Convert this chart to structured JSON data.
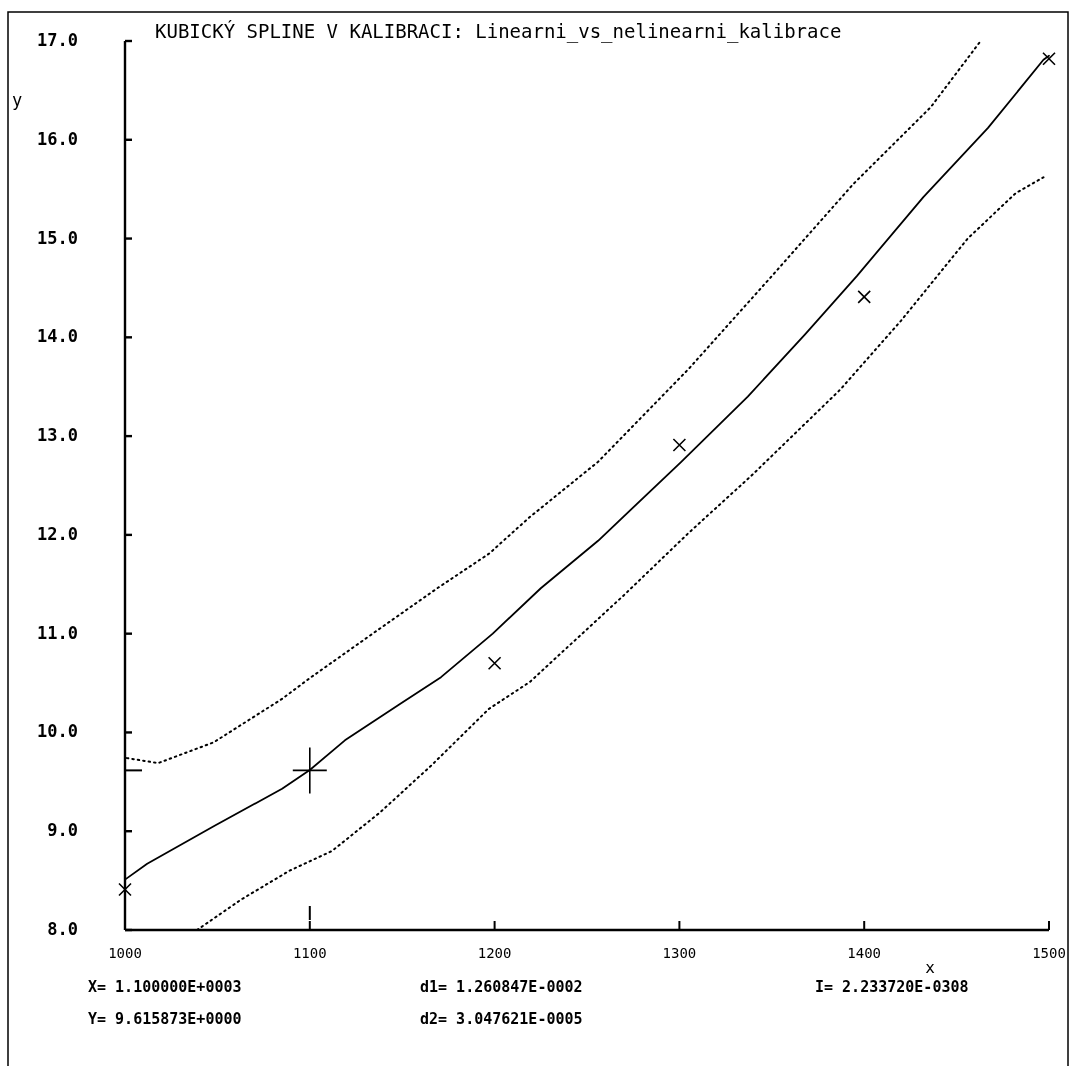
{
  "chart_data": {
    "type": "line",
    "title": "KUBICKÝ SPLINE V KALIBRACI: Linearni_vs_nelinearni_kalibrace",
    "xlabel": "x",
    "ylabel": "y",
    "xlim": [
      1000,
      1500
    ],
    "xticks": [
      1000,
      1100,
      1200,
      1300,
      1400,
      1500
    ],
    "ylim": [
      8,
      17
    ],
    "yticks": [
      {
        "value": 8,
        "label": "8.0"
      },
      {
        "value": 9,
        "label": "9.0"
      },
      {
        "value": 10,
        "label": "10.0"
      },
      {
        "value": 11,
        "label": "11.0"
      },
      {
        "value": 12,
        "label": "12.0"
      },
      {
        "value": 13,
        "label": "13.0"
      },
      {
        "value": 14,
        "label": "14.0"
      },
      {
        "value": 15,
        "label": "15.0"
      },
      {
        "value": 16,
        "label": "16.0"
      },
      {
        "value": 17,
        "label": "17.0"
      }
    ],
    "series": [
      {
        "type": "line",
        "color": "#000000",
        "line_style": "solid",
        "marker": "none",
        "x": [
          1000,
          1012,
          1048,
          1085,
          1100,
          1119,
          1149,
          1171,
          1199,
          1225,
          1256,
          1301,
          1337,
          1368,
          1396,
          1432,
          1467,
          1497,
          1500
        ],
        "values": [
          8.51,
          8.67,
          9.05,
          9.43,
          9.62,
          9.92,
          10.29,
          10.56,
          11.0,
          11.46,
          11.94,
          12.74,
          13.4,
          14.03,
          14.62,
          15.42,
          16.12,
          16.81,
          16.85
        ]
      },
      {
        "type": "line",
        "color": "#000000",
        "line_style": "dotted",
        "marker": "none",
        "x": [
          1001,
          1018,
          1048,
          1085,
          1100,
          1134,
          1169,
          1197,
          1219,
          1256,
          1305,
          1350,
          1394,
          1436,
          1463
        ],
        "values": [
          9.74,
          9.69,
          9.9,
          10.34,
          10.55,
          11.0,
          11.46,
          11.81,
          12.18,
          12.74,
          13.68,
          14.62,
          15.55,
          16.33,
          17.0
        ]
      },
      {
        "type": "line",
        "color": "#000000",
        "line_style": "dotted",
        "marker": "none",
        "x": [
          1039,
          1063,
          1089,
          1112,
          1138,
          1166,
          1197,
          1219,
          1270,
          1305,
          1339,
          1387,
          1420,
          1456,
          1482,
          1497
        ],
        "values": [
          8.0,
          8.31,
          8.6,
          8.8,
          9.19,
          9.67,
          10.24,
          10.51,
          11.39,
          12.02,
          12.6,
          13.47,
          14.17,
          15.0,
          15.46,
          15.62
        ]
      },
      {
        "type": "scatter",
        "color": "#000000",
        "marker": "cross",
        "x": [
          1000,
          1200,
          1300,
          1400,
          1500
        ],
        "values": [
          8.41,
          10.7,
          12.91,
          14.41,
          16.82
        ]
      }
    ],
    "annotations": [
      "X= 1.100000E+0003",
      "Y= 9.615873E+0000",
      "d1= 1.260847E-0002",
      "d2= 3.047621E-0005",
      "I= 2.233720E-0308"
    ]
  }
}
